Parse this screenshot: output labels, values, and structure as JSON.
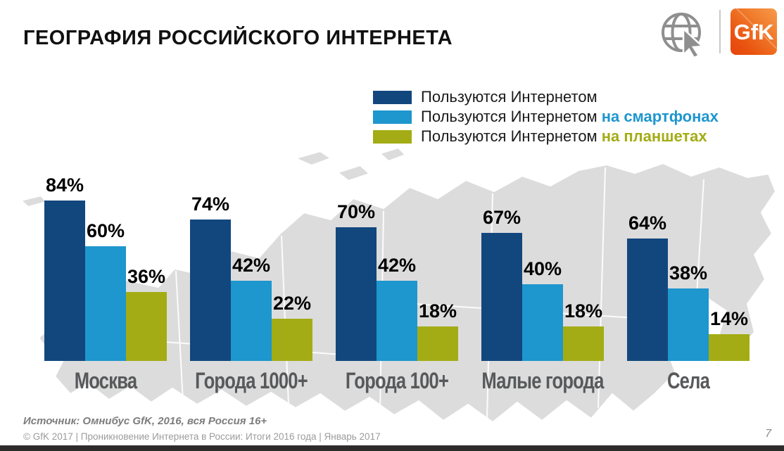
{
  "header": {
    "title": "ГЕОГРАФИЯ РОССИЙСКОГО ИНТЕРНЕТА",
    "logo_text": "GfK"
  },
  "legend": {
    "items": [
      {
        "base": "Пользуются Интернетом",
        "suffix": "",
        "color": "#12477E"
      },
      {
        "base": "Пользуются Интернетом",
        "suffix": "на смартфонах",
        "color": "#1E96CE"
      },
      {
        "base": "Пользуются Интернетом",
        "suffix": "на планшетах",
        "color": "#A3AC14"
      }
    ]
  },
  "chart_data": {
    "type": "bar",
    "title": "ГЕОГРАФИЯ РОССИЙСКОГО ИНТЕРНЕТА",
    "categories": [
      "Москва",
      "Города 1000+",
      "Города 100+",
      "Малые города",
      "Села"
    ],
    "series": [
      {
        "name": "Пользуются Интернетом",
        "color": "#12477E",
        "values": [
          84,
          74,
          70,
          67,
          64
        ]
      },
      {
        "name": "Пользуются Интернетом на смартфонах",
        "color": "#1E96CE",
        "values": [
          60,
          42,
          42,
          40,
          38
        ]
      },
      {
        "name": "Пользуются Интернетом на планшетах",
        "color": "#A3AC14",
        "values": [
          36,
          22,
          18,
          18,
          14
        ]
      }
    ],
    "value_suffix": "%",
    "xlabel": "",
    "ylabel": "",
    "ylim": [
      0,
      100
    ],
    "grid": false,
    "legend_position": "top-right",
    "data_labels": true,
    "background": "grey Russia map silhouette"
  },
  "footer": {
    "source": "Источник: Омнибус GfK, 2016, вся Россия 16+",
    "copyright": "© GfK 2017 | Проникновение Интернета в России: Итоги 2016 года | Январь 2017",
    "page_number": "7"
  },
  "colors": {
    "series_internet": "#12477E",
    "series_smartphone": "#1E96CE",
    "series_tablet": "#A3AC14",
    "map_fill": "#DCDCDC",
    "category_label": "#58595B",
    "logo_orange": "#E9530F",
    "bottom_strip": "#2E2B2B"
  }
}
